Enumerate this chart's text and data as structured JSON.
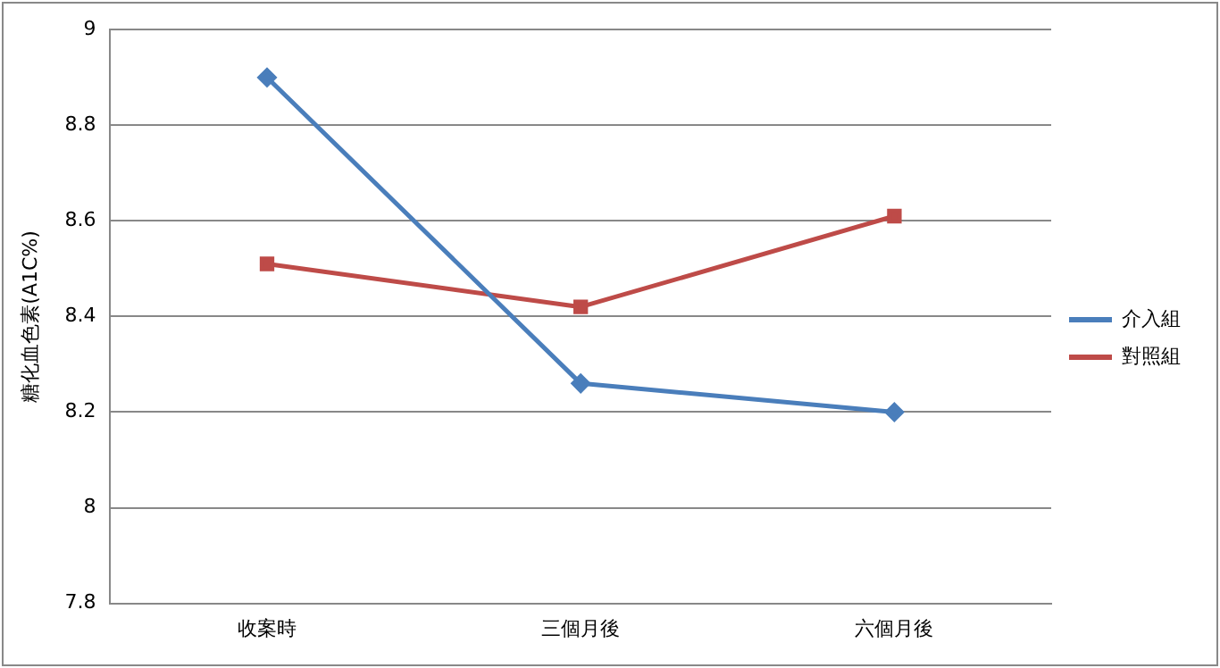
{
  "chart_data": {
    "type": "line",
    "ylabel": "糖化血色素(A1C%)",
    "categories": [
      "收案時",
      "三個月後",
      "六個月後"
    ],
    "series": [
      {
        "name": "介入組",
        "color": "#4a7ebb",
        "marker": "diamond",
        "values": [
          8.9,
          8.26,
          8.2
        ]
      },
      {
        "name": "對照組",
        "color": "#be4b48",
        "marker": "square",
        "values": [
          8.51,
          8.42,
          8.61
        ]
      }
    ],
    "ylim": [
      7.8,
      9
    ],
    "yticks": [
      7.8,
      8,
      8.2,
      8.4,
      8.6,
      8.8,
      9
    ],
    "grid": "y",
    "legend": "right"
  }
}
